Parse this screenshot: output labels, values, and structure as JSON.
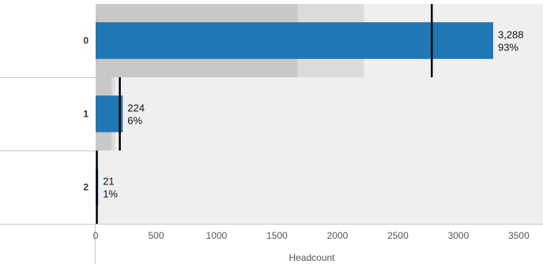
{
  "chart_data": {
    "type": "bar",
    "subtype": "bullet",
    "orientation": "horizontal",
    "categories": [
      "0",
      "1",
      "2"
    ],
    "values": [
      3288,
      224,
      21
    ],
    "value_labels": [
      "3,288",
      "224",
      "21"
    ],
    "percent_labels": [
      "93%",
      "6%",
      "1%"
    ],
    "targets": [
      2780,
      200,
      10
    ],
    "ranges": [
      [
        1670,
        2220,
        3700
      ],
      [
        130,
        160,
        3700
      ],
      [
        0,
        0,
        3700
      ]
    ],
    "xlabel": "Headcount",
    "xlim": [
      0,
      3700
    ],
    "xticks": [
      0,
      500,
      1000,
      1500,
      2000,
      2500,
      3000,
      3500
    ],
    "xtick_labels": [
      "0",
      "500",
      "1000",
      "1500",
      "2000",
      "2500",
      "3000",
      "3500"
    ],
    "grid": false,
    "colors": {
      "bar": "#1f77b4",
      "target": "#000000",
      "range_dark": "#c8c8c8",
      "range_mid": "#dcdcdc",
      "range_light": "#efefef",
      "row_separator": "#c8c8c8"
    }
  }
}
